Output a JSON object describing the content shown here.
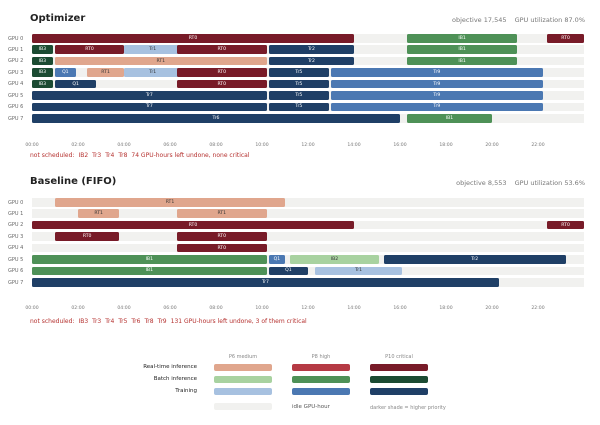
{
  "colors": {
    "rt": [
      "#e0a68d",
      "#b53a44",
      "#781b28"
    ],
    "ib": [
      "#a8d2a0",
      "#4e9157",
      "#1b4b32"
    ],
    "tr": [
      "#a7c1e0",
      "#4b78b2",
      "#1f3f66"
    ],
    "idle": "#f1f1ef"
  },
  "legend": {
    "priority_headers": [
      "P6 medium",
      "P8 high",
      "P10 critical"
    ],
    "rows": [
      "Real-time inference",
      "Batch inference",
      "Training"
    ],
    "idle_label": "idle GPU-hour",
    "shade_note": "darker shade = higher priority"
  },
  "chart_data": [
    {
      "type": "gantt",
      "title": "Optimizer",
      "stats": [
        "objective 17,545",
        "GPU utilization 87.0%"
      ],
      "xlim": [
        0,
        24
      ],
      "ticks": [
        "00:00",
        "02:00",
        "04:00",
        "06:00",
        "08:00",
        "10:00",
        "12:00",
        "14:00",
        "16:00",
        "18:00",
        "20:00",
        "22:00"
      ],
      "rows": [
        "GPU 0",
        "GPU 1",
        "GPU 2",
        "GPU 3",
        "GPU 4",
        "GPU 5",
        "GPU 6",
        "GPU 7"
      ],
      "tasks": [
        {
          "gpu": 0,
          "start": 0,
          "end": 14,
          "label": "RT0",
          "kind": "rt",
          "p": 2
        },
        {
          "gpu": 0,
          "start": 16.3,
          "end": 21.1,
          "label": "IB1",
          "kind": "ib",
          "p": 1
        },
        {
          "gpu": 0,
          "start": 22.4,
          "end": 24,
          "label": "RT0",
          "kind": "rt",
          "p": 2
        },
        {
          "gpu": 1,
          "start": 0,
          "end": 0.9,
          "label": "IB3",
          "kind": "ib",
          "p": 2
        },
        {
          "gpu": 1,
          "start": 1,
          "end": 4,
          "label": "RT0",
          "kind": "rt",
          "p": 2
        },
        {
          "gpu": 1,
          "start": 4,
          "end": 6.5,
          "label": "Tr1",
          "kind": "tr",
          "p": 0
        },
        {
          "gpu": 1,
          "start": 6.3,
          "end": 10.2,
          "label": "RT0",
          "kind": "rt",
          "p": 2
        },
        {
          "gpu": 1,
          "start": 10.3,
          "end": 14,
          "label": "Tr2",
          "kind": "tr",
          "p": 2
        },
        {
          "gpu": 1,
          "start": 16.3,
          "end": 21.1,
          "label": "IB1",
          "kind": "ib",
          "p": 1
        },
        {
          "gpu": 2,
          "start": 0,
          "end": 0.9,
          "label": "IB3",
          "kind": "ib",
          "p": 2
        },
        {
          "gpu": 2,
          "start": 1,
          "end": 10.2,
          "label": "RT1",
          "kind": "rt",
          "p": 0
        },
        {
          "gpu": 2,
          "start": 10.3,
          "end": 14,
          "label": "Tr2",
          "kind": "tr",
          "p": 2
        },
        {
          "gpu": 2,
          "start": 16.3,
          "end": 21.1,
          "label": "IB1",
          "kind": "ib",
          "p": 1
        },
        {
          "gpu": 3,
          "start": 0,
          "end": 0.9,
          "label": "IB3",
          "kind": "ib",
          "p": 2
        },
        {
          "gpu": 3,
          "start": 1,
          "end": 1.9,
          "label": "Q1",
          "kind": "tr",
          "p": 1
        },
        {
          "gpu": 3,
          "start": 2.4,
          "end": 4,
          "label": "RT1",
          "kind": "rt",
          "p": 0
        },
        {
          "gpu": 3,
          "start": 4,
          "end": 6.5,
          "label": "Tr1",
          "kind": "tr",
          "p": 0
        },
        {
          "gpu": 3,
          "start": 6.3,
          "end": 10.2,
          "label": "RT0",
          "kind": "rt",
          "p": 2
        },
        {
          "gpu": 3,
          "start": 10.3,
          "end": 12.9,
          "label": "Tr5",
          "kind": "tr",
          "p": 2
        },
        {
          "gpu": 3,
          "start": 13,
          "end": 22.2,
          "label": "Tr9",
          "kind": "tr",
          "p": 1
        },
        {
          "gpu": 4,
          "start": 0,
          "end": 0.9,
          "label": "IB3",
          "kind": "ib",
          "p": 2
        },
        {
          "gpu": 4,
          "start": 1,
          "end": 2.8,
          "label": "Q1",
          "kind": "tr",
          "p": 2
        },
        {
          "gpu": 4,
          "start": 6.3,
          "end": 10.2,
          "label": "RT0",
          "kind": "rt",
          "p": 2
        },
        {
          "gpu": 4,
          "start": 10.3,
          "end": 12.9,
          "label": "Tr5",
          "kind": "tr",
          "p": 2
        },
        {
          "gpu": 4,
          "start": 13,
          "end": 22.2,
          "label": "Tr9",
          "kind": "tr",
          "p": 1
        },
        {
          "gpu": 5,
          "start": 0,
          "end": 10.2,
          "label": "Tr7",
          "kind": "tr",
          "p": 2
        },
        {
          "gpu": 5,
          "start": 10.3,
          "end": 12.9,
          "label": "Tr5",
          "kind": "tr",
          "p": 2
        },
        {
          "gpu": 5,
          "start": 13,
          "end": 22.2,
          "label": "Tr9",
          "kind": "tr",
          "p": 1
        },
        {
          "gpu": 6,
          "start": 0,
          "end": 10.2,
          "label": "Tr7",
          "kind": "tr",
          "p": 2
        },
        {
          "gpu": 6,
          "start": 10.3,
          "end": 12.9,
          "label": "Tr5",
          "kind": "tr",
          "p": 2
        },
        {
          "gpu": 6,
          "start": 13,
          "end": 22.2,
          "label": "Tr9",
          "kind": "tr",
          "p": 1
        },
        {
          "gpu": 7,
          "start": 0,
          "end": 16,
          "label": "Tr6",
          "kind": "tr",
          "p": 2
        },
        {
          "gpu": 7,
          "start": 16.3,
          "end": 20,
          "label": "IB1",
          "kind": "ib",
          "p": 1
        }
      ],
      "note": [
        "not scheduled:",
        "IB2",
        "Tr3",
        "Tr4",
        "Tr8",
        "74 GPU-hours left undone, none critical"
      ]
    },
    {
      "type": "gantt",
      "title": "Baseline (FIFO)",
      "stats": [
        "objective 8,553",
        "GPU utilization 53.6%"
      ],
      "xlim": [
        0,
        24
      ],
      "ticks": [
        "00:00",
        "02:00",
        "04:00",
        "06:00",
        "08:00",
        "10:00",
        "12:00",
        "14:00",
        "16:00",
        "18:00",
        "20:00",
        "22:00"
      ],
      "rows": [
        "GPU 0",
        "GPU 1",
        "GPU 2",
        "GPU 3",
        "GPU 4",
        "GPU 5",
        "GPU 6",
        "GPU 7"
      ],
      "tasks": [
        {
          "gpu": 0,
          "start": 1,
          "end": 11,
          "label": "RT1",
          "kind": "rt",
          "p": 0
        },
        {
          "gpu": 1,
          "start": 2,
          "end": 3.8,
          "label": "RT1",
          "kind": "rt",
          "p": 0
        },
        {
          "gpu": 1,
          "start": 6.3,
          "end": 10.2,
          "label": "RT1",
          "kind": "rt",
          "p": 0
        },
        {
          "gpu": 2,
          "start": 0,
          "end": 14,
          "label": "RT0",
          "kind": "rt",
          "p": 2
        },
        {
          "gpu": 2,
          "start": 22.4,
          "end": 24,
          "label": "RT0",
          "kind": "rt",
          "p": 2
        },
        {
          "gpu": 3,
          "start": 1,
          "end": 3.8,
          "label": "RT0",
          "kind": "rt",
          "p": 2
        },
        {
          "gpu": 3,
          "start": 6.3,
          "end": 10.2,
          "label": "RT0",
          "kind": "rt",
          "p": 2
        },
        {
          "gpu": 4,
          "start": 6.3,
          "end": 10.2,
          "label": "RT0",
          "kind": "rt",
          "p": 2
        },
        {
          "gpu": 5,
          "start": 0,
          "end": 10.2,
          "label": "IB1",
          "kind": "ib",
          "p": 1
        },
        {
          "gpu": 5,
          "start": 10.3,
          "end": 11,
          "label": "Q1",
          "kind": "tr",
          "p": 1
        },
        {
          "gpu": 5,
          "start": 11.2,
          "end": 15.1,
          "label": "IB2",
          "kind": "ib",
          "p": 0
        },
        {
          "gpu": 5,
          "start": 15.3,
          "end": 23.2,
          "label": "Tr2",
          "kind": "tr",
          "p": 2
        },
        {
          "gpu": 6,
          "start": 0,
          "end": 10.2,
          "label": "IB1",
          "kind": "ib",
          "p": 1
        },
        {
          "gpu": 6,
          "start": 10.3,
          "end": 12,
          "label": "Q1",
          "kind": "tr",
          "p": 2
        },
        {
          "gpu": 6,
          "start": 12.3,
          "end": 16.1,
          "label": "Tr1",
          "kind": "tr",
          "p": 0
        },
        {
          "gpu": 7,
          "start": 0,
          "end": 20.3,
          "label": "Tr7",
          "kind": "tr",
          "p": 2
        }
      ],
      "note": [
        "not scheduled:",
        "IB3",
        "Tr3",
        "Tr4",
        "Tr5",
        "Tr6",
        "Tr8",
        "Tr9",
        "131 GPU-hours left undone, 3 of them critical"
      ]
    }
  ]
}
